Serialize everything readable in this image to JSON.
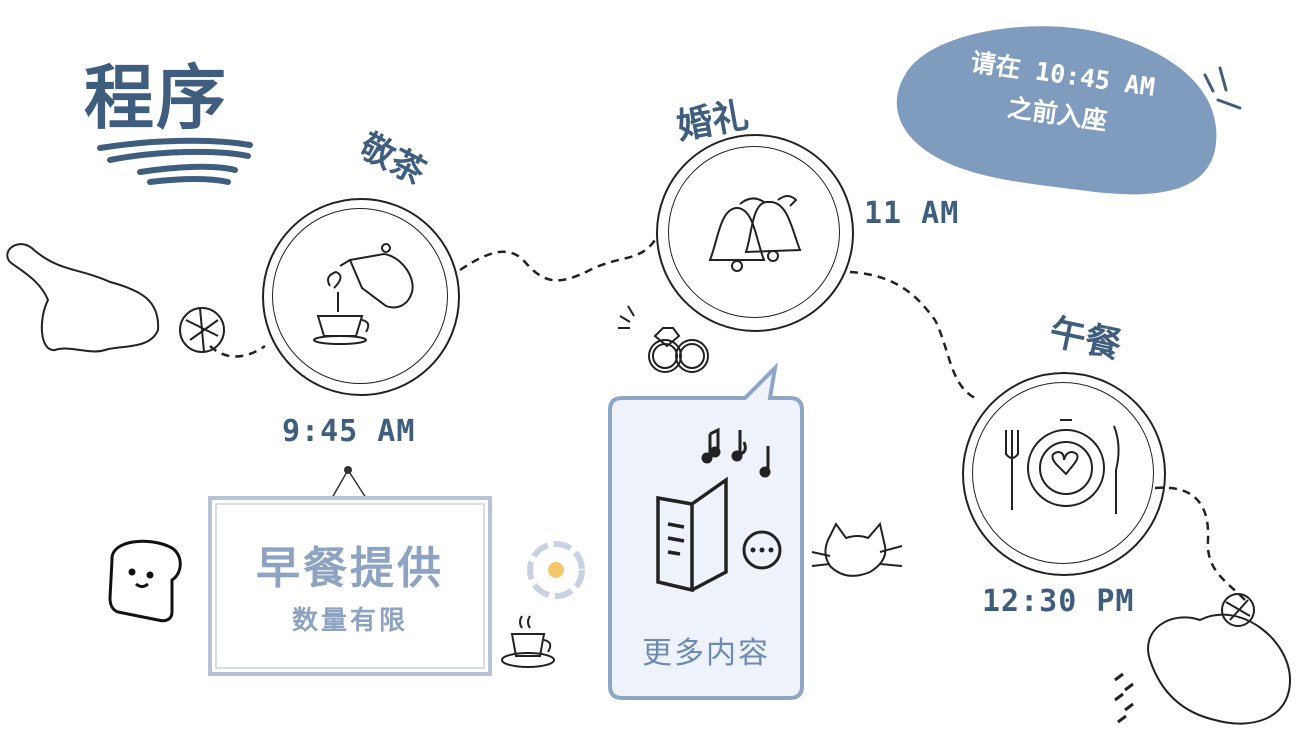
{
  "title": "程序",
  "events": [
    {
      "name": "敬茶",
      "time": "9:45 AM",
      "icon": "teapot-icon"
    },
    {
      "name": "婚礼",
      "time": "11 AM",
      "icon": "bells-icon"
    },
    {
      "name": "午餐",
      "time": "12:30 PM",
      "icon": "plate-icon"
    }
  ],
  "seating_note": {
    "line1": "请在 10:45 AM",
    "line2": "之前入座"
  },
  "breakfast_sign": {
    "title": "早餐提供",
    "subtitle": "数量有限"
  },
  "program_card": {
    "label": "更多内容"
  },
  "colors": {
    "accent": "#3f5e7e",
    "bubble": "#7f9cbe",
    "sign_text": "#8ea3c2",
    "card_bg": "#eef3fb",
    "card_border": "#8ea6c5"
  }
}
